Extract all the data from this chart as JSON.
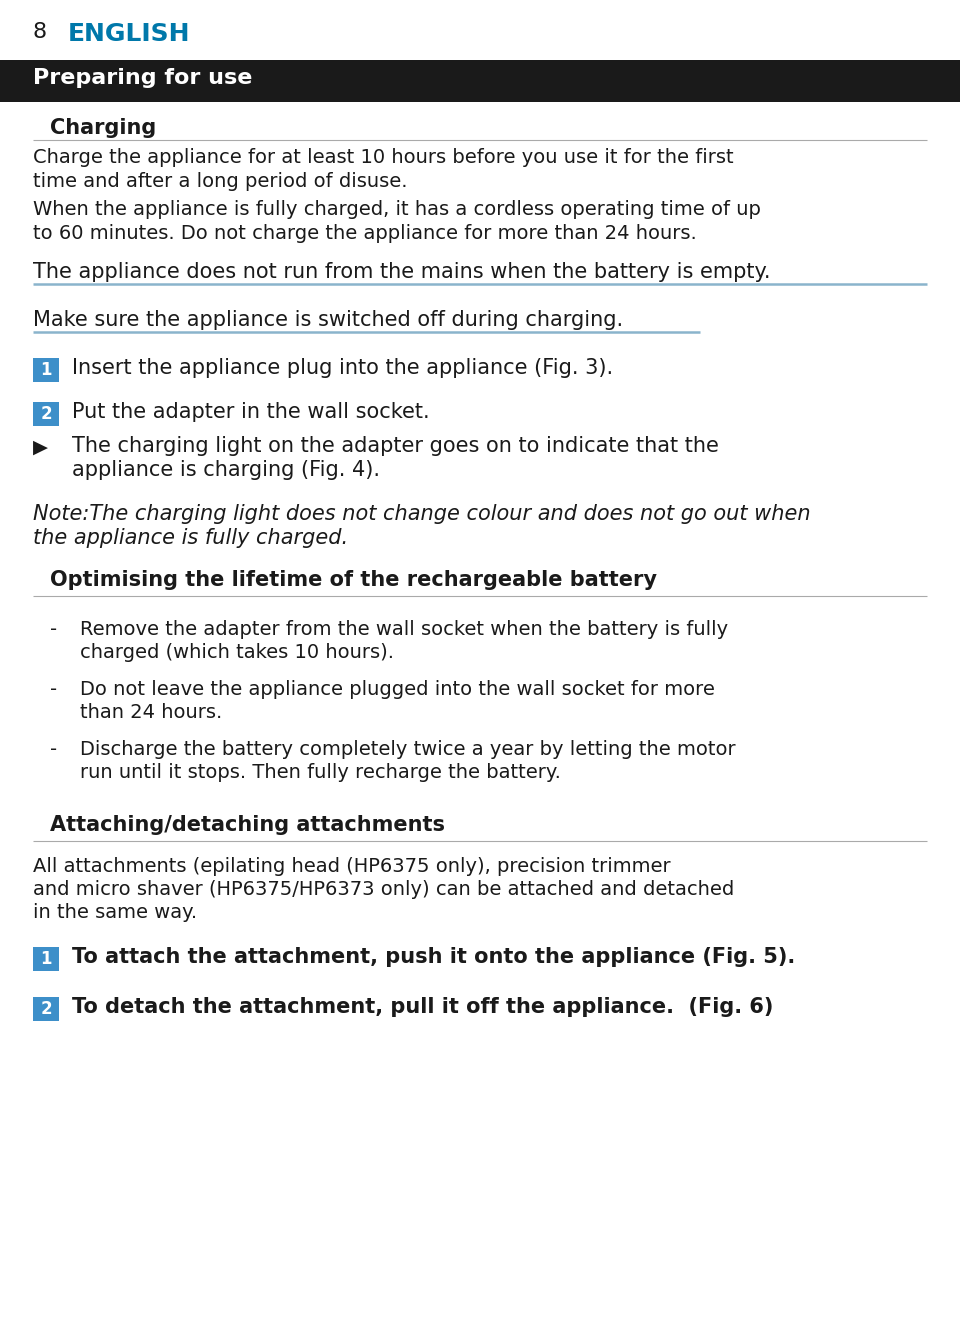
{
  "page_number": "8",
  "page_title": "ENGLISH",
  "page_title_color": "#0078AA",
  "bg_color": "#FFFFFF",
  "section_header_bg": "#1A1A1A",
  "section_header_text": "Preparing for use",
  "section_header_color": "#FFFFFF",
  "subsection_header": "Charging",
  "subsection2_header": "Optimising the lifetime of the rechargeable battery",
  "subsection3_header": "Attaching/detaching attachments",
  "blue_box_color": "#3D8FC9",
  "body_text_color": "#1A1A1A",
  "underline_color": "#8AB4CC",
  "para1_line1": "Charge the appliance for at least 10 hours before you use it for the first",
  "para1_line2": "time and after a long period of disuse.",
  "para2_line1": "When the appliance is fully charged, it has a cordless operating time of up",
  "para2_line2": "to 60 minutes. Do not charge the appliance for more than 24 hours.",
  "emphasis1": "The appliance does not run from the mains when the battery is empty.",
  "emphasis2": "Make sure the appliance is switched off during charging.",
  "step1": "Insert the appliance plug into the appliance (Fig. 3).",
  "step2": "Put the adapter in the wall socket.",
  "bullet1_line1": "The charging light on the adapter goes on to indicate that the",
  "bullet1_line2": "appliance is charging (Fig. 4).",
  "note_line1": "Note:The charging light does not change colour and does not go out when",
  "note_line2": "the appliance is fully charged.",
  "opt_bullet1_line1": "Remove the adapter from the wall socket when the battery is fully",
  "opt_bullet1_line2": "charged (which takes 10 hours).",
  "opt_bullet2_line1": "Do not leave the appliance plugged into the wall socket for more",
  "opt_bullet2_line2": "than 24 hours.",
  "opt_bullet3_line1": "Discharge the battery completely twice a year by letting the motor",
  "opt_bullet3_line2": "run until it stops. Then fully recharge the battery.",
  "attach_para_line1": "All attachments (epilating head (HP6375 only), precision trimmer",
  "attach_para_line2": "and micro shaver (HP6375/HP6373 only) can be attached and detached",
  "attach_para_line3": "in the same way.",
  "attach_step1": "To attach the attachment, push it onto the appliance (Fig. 5).",
  "attach_step2": "To detach the attachment, pull it off the appliance.  (Fig. 6)"
}
